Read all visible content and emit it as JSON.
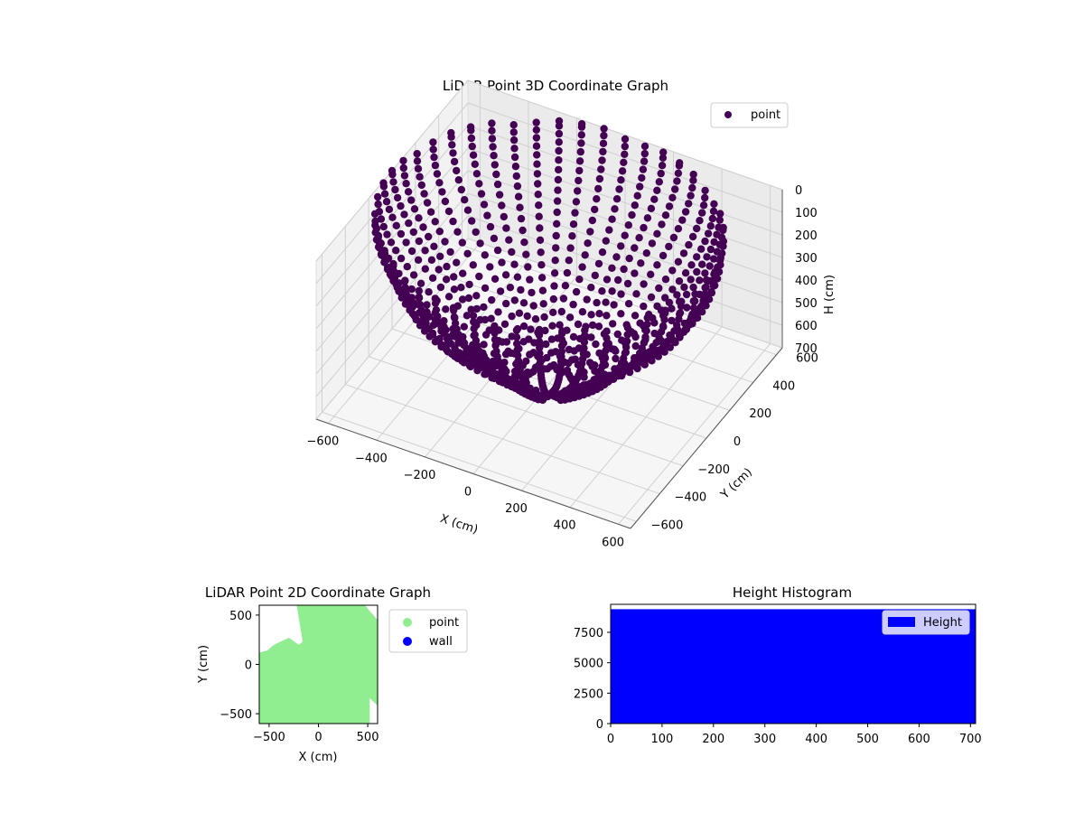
{
  "chart_data": [
    {
      "type": "scatter",
      "projection": "3d",
      "title": "LiDAR Point 3D Coordinate Graph",
      "xlabel": "X (cm)",
      "ylabel": "Y (cm)",
      "zlabel": "H (cm)",
      "xlim": [
        -650,
        650
      ],
      "ylim": [
        -650,
        650
      ],
      "zlim": [
        0,
        700
      ],
      "z_inverted": true,
      "x_ticks": [
        "−600",
        "−400",
        "−200",
        "0",
        "200",
        "400",
        "600"
      ],
      "y_ticks": [
        "−600",
        "−400",
        "−200",
        "0",
        "200",
        "400",
        "600"
      ],
      "z_ticks": [
        "0",
        "100",
        "200",
        "300",
        "400",
        "500",
        "600",
        "700"
      ],
      "x_tick_values": [
        -600,
        -400,
        -200,
        0,
        200,
        400,
        600
      ],
      "y_tick_values": [
        -600,
        -400,
        -200,
        0,
        200,
        400,
        600
      ],
      "z_tick_values": [
        0,
        100,
        200,
        300,
        400,
        500,
        600,
        700
      ],
      "grid": true,
      "legend_position": "top-right",
      "series": [
        {
          "name": "point",
          "color": "#440154",
          "description_of_shape": "many radial fan-shaped arcs of points rising from the floor to about 700 cm around the origin, forming a bowl / dome"
        }
      ]
    },
    {
      "type": "scatter",
      "title": "LiDAR Point 2D Coordinate Graph",
      "xlabel": "X (cm)",
      "ylabel": "Y (cm)",
      "xlim": [
        -600,
        600
      ],
      "ylim": [
        -600,
        600
      ],
      "x_ticks": [
        "−500",
        "0",
        "500"
      ],
      "y_ticks": [
        "−500",
        "0",
        "500"
      ],
      "x_tick_values": [
        -500,
        0,
        500
      ],
      "y_tick_values": [
        -500,
        0,
        500
      ],
      "legend_position": "outside-right",
      "series": [
        {
          "name": "point",
          "color": "#90ee90",
          "region_outline_xy": [
            [
              -220,
              600
            ],
            [
              470,
              600
            ],
            [
              600,
              450
            ],
            [
              600,
              -420
            ],
            [
              520,
              -340
            ],
            [
              520,
              -600
            ],
            [
              -600,
              -600
            ],
            [
              -600,
              120
            ],
            [
              -520,
              140
            ],
            [
              -450,
              200
            ],
            [
              -300,
              270
            ],
            [
              -200,
              200
            ],
            [
              -160,
              230
            ]
          ]
        },
        {
          "name": "wall",
          "color": "#0000ff",
          "points": []
        }
      ]
    },
    {
      "type": "bar",
      "subtype": "histogram",
      "title": "Height Histogram",
      "xlim": [
        0,
        710
      ],
      "ylim": [
        0,
        9800
      ],
      "x_ticks": [
        "0",
        "100",
        "200",
        "300",
        "400",
        "500",
        "600",
        "700"
      ],
      "y_ticks": [
        "0",
        "2500",
        "5000",
        "7500"
      ],
      "x_tick_values": [
        0,
        100,
        200,
        300,
        400,
        500,
        600,
        700
      ],
      "y_tick_values": [
        0,
        2500,
        5000,
        7500
      ],
      "legend_position": "top-right",
      "series": [
        {
          "name": "Height",
          "color": "#0000ff",
          "bins": [
            [
              0,
              710
            ]
          ],
          "values": [
            9400
          ]
        }
      ]
    }
  ]
}
